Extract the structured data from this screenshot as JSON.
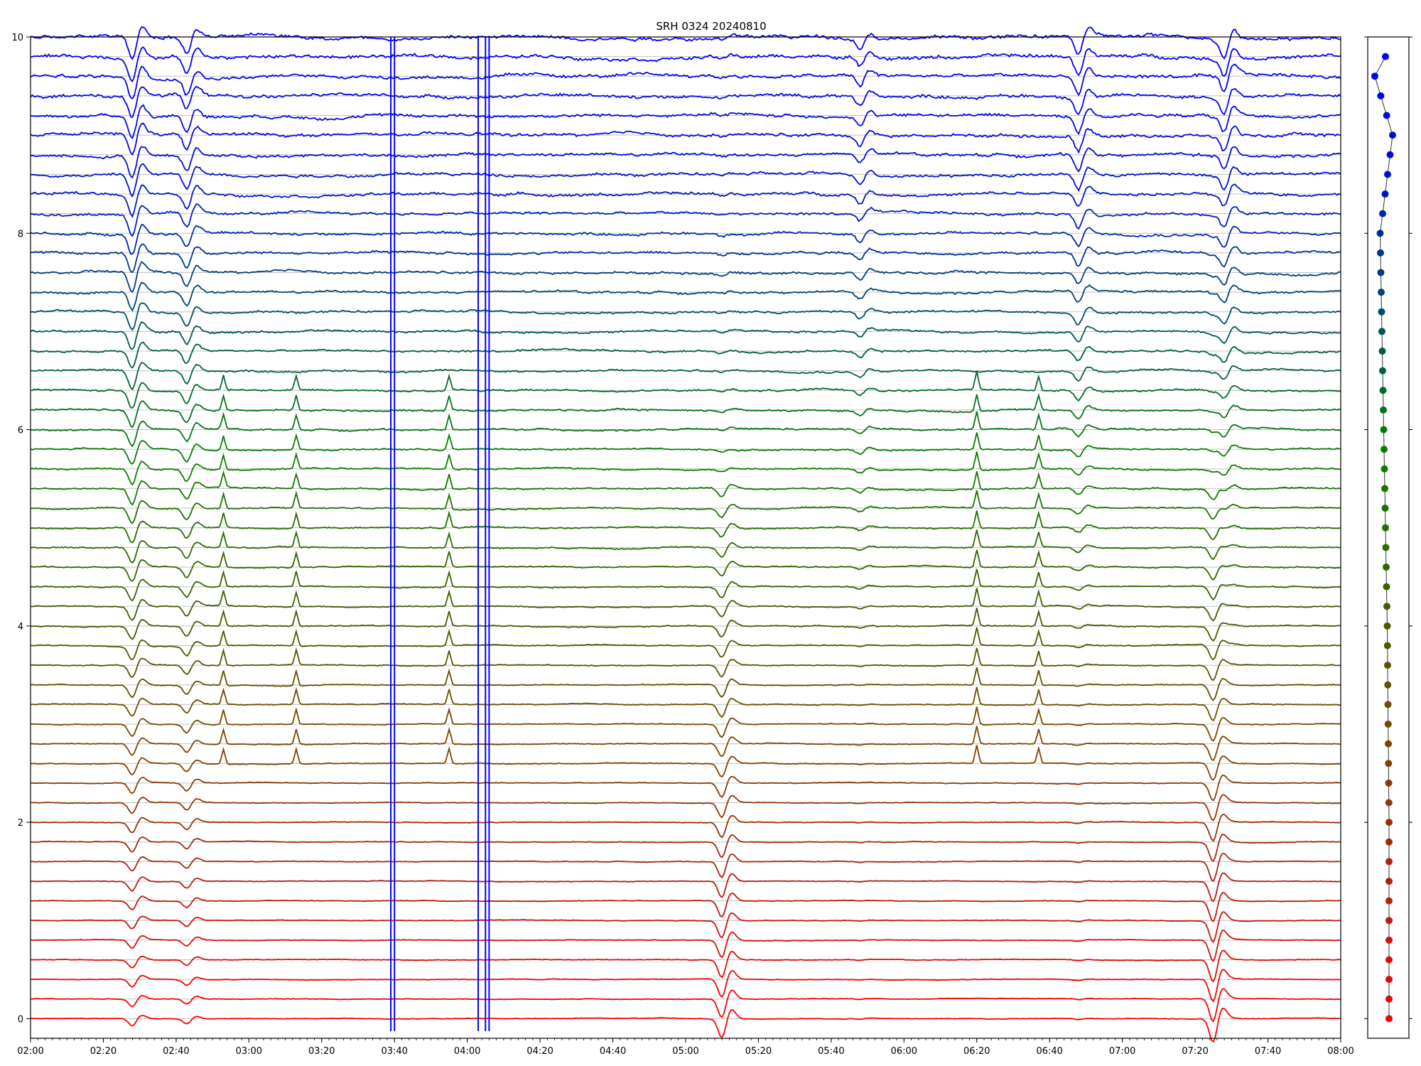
{
  "chart_data": {
    "type": "line",
    "title": "SRH 0324 20240810",
    "xlabel": "",
    "ylabel": "",
    "xlim": [
      "02:00",
      "08:00"
    ],
    "ylim": [
      -0.2,
      10
    ],
    "x_ticks": [
      "02:00",
      "02:20",
      "02:40",
      "03:00",
      "03:20",
      "03:40",
      "04:00",
      "04:20",
      "04:40",
      "05:00",
      "05:20",
      "05:40",
      "06:00",
      "06:20",
      "06:40",
      "07:00",
      "07:20",
      "07:40",
      "08:00"
    ],
    "y_ticks": [
      "0",
      "2",
      "4",
      "6",
      "8",
      "10"
    ],
    "grid": "horizontal",
    "legend": "none",
    "series_count": 51,
    "series_spacing": 0.2,
    "color_scale": [
      "#ff0000",
      "#b02010",
      "#7a4800",
      "#3c6000",
      "#0a8000",
      "#005060",
      "#0010d0",
      "#0000ff"
    ],
    "events": [
      {
        "time": "02:28",
        "amplitude": 0.25,
        "affects": "all"
      },
      {
        "time": "02:43",
        "amplitude": 0.18,
        "affects": "all"
      },
      {
        "time": "05:10",
        "amplitude": 0.2,
        "affects": "lower"
      },
      {
        "time": "05:48",
        "amplitude": 0.12,
        "affects": "upper"
      },
      {
        "time": "06:48",
        "amplitude": 0.2,
        "affects": "upper"
      },
      {
        "time": "07:25",
        "amplitude": 0.25,
        "affects": "lower"
      },
      {
        "time": "07:28",
        "amplitude": 0.22,
        "affects": "upper"
      }
    ],
    "spikes": [
      {
        "time": "02:53",
        "amplitude": 0.15,
        "band": "middle"
      },
      {
        "time": "03:13",
        "amplitude": 0.15,
        "band": "middle"
      },
      {
        "time": "03:55",
        "amplitude": 0.15,
        "band": "middle"
      },
      {
        "time": "06:20",
        "amplitude": 0.18,
        "band": "middle"
      },
      {
        "time": "06:37",
        "amplitude": 0.15,
        "band": "middle"
      }
    ],
    "vertical_bursts": [
      "03:39",
      "03:40",
      "04:03",
      "04:05",
      "04:06"
    ],
    "side_panel_dots": [
      {
        "index": 0,
        "x": 0.0,
        "color": "#ff0000"
      },
      {
        "index": 10,
        "x": 0.0,
        "color": "#c01808"
      },
      {
        "index": 20,
        "x": -0.1,
        "color": "#7a4800"
      },
      {
        "index": 30,
        "x": -0.3,
        "color": "#0a8000"
      },
      {
        "index": 40,
        "x": -0.5,
        "color": "#0030a0"
      },
      {
        "index": 45,
        "x": 0.2,
        "color": "#0010d0"
      },
      {
        "index": 48,
        "x": -0.8,
        "color": "#0000ff"
      },
      {
        "index": 49,
        "x": -0.2,
        "color": "#0000ff"
      }
    ]
  }
}
